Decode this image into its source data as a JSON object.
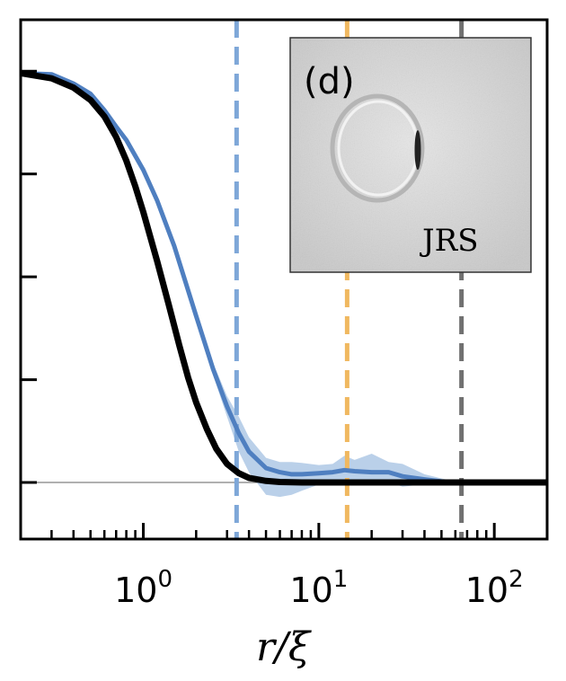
{
  "chart_data": {
    "type": "line",
    "xscale": "log",
    "xlim": [
      0.2,
      200
    ],
    "ylim": [
      -0.55,
      4.5
    ],
    "xlabel": "r/ξ",
    "xlabel_base": "r/",
    "xlabel_sym": "ξ",
    "xticks": [
      {
        "value": 1,
        "base": "10",
        "exp": "0"
      },
      {
        "value": 10,
        "base": "10",
        "exp": "1"
      },
      {
        "value": 100,
        "base": "10",
        "exp": "2"
      }
    ],
    "yticks": [
      0,
      1,
      2,
      3,
      4
    ],
    "show_ytick_labels": false,
    "baseline": 0,
    "colors": {
      "theory": "#000000",
      "measured": "#4f7fc0",
      "band": "#a9c4e4",
      "vline_blue": "#7ea7d8",
      "vline_orange": "#f0b860",
      "vline_gray": "#707070",
      "baseline": "#b0b0b0"
    },
    "series": [
      {
        "role": "theory",
        "x": [
          0.2,
          0.3,
          0.4,
          0.5,
          0.6,
          0.7,
          0.8,
          0.9,
          1.0,
          1.2,
          1.4,
          1.6,
          1.8,
          2.0,
          2.3,
          2.6,
          3.0,
          3.5,
          4.0,
          5.0,
          6.0,
          8.0,
          10,
          20,
          50,
          100,
          200
        ],
        "y": [
          3.98,
          3.93,
          3.84,
          3.72,
          3.56,
          3.36,
          3.13,
          2.88,
          2.63,
          2.15,
          1.72,
          1.34,
          1.02,
          0.78,
          0.52,
          0.33,
          0.18,
          0.09,
          0.045,
          0.015,
          0.005,
          0.0,
          0.0,
          0.0,
          0.0,
          0.0,
          0.0
        ]
      },
      {
        "role": "measured",
        "x": [
          0.2,
          0.3,
          0.4,
          0.5,
          0.6,
          0.7,
          0.8,
          1.0,
          1.2,
          1.5,
          2.0,
          2.5,
          3.0,
          3.5,
          4.0,
          5.0,
          6.0,
          7.0,
          8.0,
          10,
          12,
          14,
          16,
          20,
          25,
          30,
          40,
          50,
          60,
          80,
          100,
          200
        ],
        "y": [
          3.98,
          3.97,
          3.88,
          3.78,
          3.62,
          3.46,
          3.33,
          3.04,
          2.74,
          2.3,
          1.62,
          1.1,
          0.74,
          0.48,
          0.3,
          0.14,
          0.1,
          0.08,
          0.08,
          0.09,
          0.1,
          0.12,
          0.11,
          0.1,
          0.1,
          0.06,
          0.03,
          0.01,
          0.0,
          0.0,
          0.0,
          0.0
        ]
      }
    ],
    "band": {
      "x": [
        2.5,
        3.0,
        3.5,
        4.0,
        5.0,
        6.0,
        7.0,
        8.0,
        10,
        12,
        14,
        16,
        20,
        25,
        30,
        40,
        50,
        60
      ],
      "upper": [
        1.16,
        0.84,
        0.64,
        0.44,
        0.24,
        0.2,
        0.2,
        0.19,
        0.17,
        0.18,
        0.26,
        0.22,
        0.28,
        0.2,
        0.18,
        0.08,
        0.04,
        0.01
      ],
      "lower": [
        1.04,
        0.64,
        0.3,
        0.1,
        -0.12,
        -0.14,
        -0.12,
        -0.08,
        -0.02,
        0.02,
        -0.02,
        0.0,
        -0.02,
        0.0,
        -0.04,
        -0.02,
        -0.03,
        -0.01
      ]
    },
    "vlines": [
      {
        "x": 3.4,
        "color": "#7ea7d8"
      },
      {
        "x": 14.5,
        "color": "#f0b860"
      },
      {
        "x": 65,
        "color": "#707070"
      }
    ],
    "panel_label": "(d)",
    "inset_label": "JRS"
  }
}
